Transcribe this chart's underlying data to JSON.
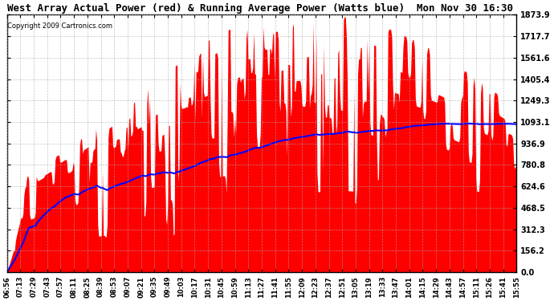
{
  "title": "West Array Actual Power (red) & Running Average Power (Watts blue)  Mon Nov 30 16:30",
  "copyright": "Copyright 2009 Cartronics.com",
  "bg_color": "#ffffff",
  "plot_bg_color": "#ffffff",
  "grid_color": "#aaaaaa",
  "bar_color": "#ff0000",
  "line_color": "#0000ff",
  "ymax": 1873.9,
  "ymin": 0.0,
  "yticks": [
    0.0,
    156.2,
    312.3,
    468.5,
    624.6,
    780.8,
    936.9,
    1093.1,
    1249.3,
    1405.4,
    1561.6,
    1717.7,
    1873.9
  ],
  "x_labels": [
    "06:56",
    "07:13",
    "07:29",
    "07:43",
    "07:57",
    "08:11",
    "08:25",
    "08:39",
    "08:53",
    "09:07",
    "09:21",
    "09:35",
    "09:49",
    "10:03",
    "10:17",
    "10:31",
    "10:45",
    "10:59",
    "11:13",
    "11:27",
    "11:41",
    "11:55",
    "12:09",
    "12:23",
    "12:37",
    "12:51",
    "13:05",
    "13:19",
    "13:33",
    "13:47",
    "14:01",
    "14:15",
    "14:29",
    "14:43",
    "14:57",
    "15:11",
    "15:26",
    "15:41",
    "15:55"
  ]
}
